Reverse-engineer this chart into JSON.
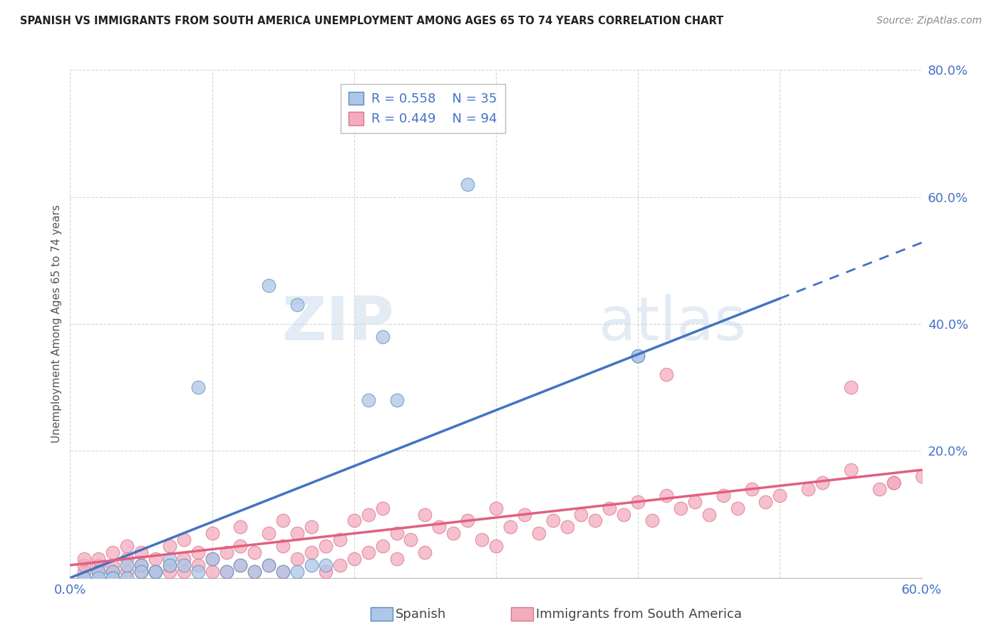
{
  "title": "SPANISH VS IMMIGRANTS FROM SOUTH AMERICA UNEMPLOYMENT AMONG AGES 65 TO 74 YEARS CORRELATION CHART",
  "source": "Source: ZipAtlas.com",
  "ylabel": "Unemployment Among Ages 65 to 74 years",
  "xlim": [
    0.0,
    0.6
  ],
  "ylim": [
    0.0,
    0.8
  ],
  "spanish_R": 0.558,
  "spanish_N": 35,
  "immigrants_R": 0.449,
  "immigrants_N": 94,
  "blue_fill": "#AEC6E8",
  "blue_edge": "#5B8DB8",
  "pink_fill": "#F4ABBE",
  "pink_edge": "#D9748A",
  "blue_line": "#4472C4",
  "pink_line": "#E06080",
  "watermark_color": "#C8D8EC",
  "background_color": "#FFFFFF",
  "grid_color": "#CCCCCC",
  "tick_color": "#4472C4",
  "blue_trendline_solid_end": 0.5,
  "blue_slope": 0.88,
  "blue_intercept": 0.0,
  "pink_slope": 0.25,
  "pink_intercept": 0.02,
  "sp_x": [
    0.28,
    0.14,
    0.16,
    0.22,
    0.09,
    0.21,
    0.23,
    0.4,
    0.4,
    0.02,
    0.03,
    0.04,
    0.05,
    0.06,
    0.07,
    0.01,
    0.02,
    0.03,
    0.04,
    0.05,
    0.06,
    0.07,
    0.08,
    0.09,
    0.1,
    0.11,
    0.12,
    0.13,
    0.14,
    0.15,
    0.16,
    0.17,
    0.18,
    0.01,
    0.03
  ],
  "sp_y": [
    0.62,
    0.46,
    0.43,
    0.38,
    0.3,
    0.28,
    0.28,
    0.35,
    0.35,
    0.01,
    0.01,
    0.02,
    0.02,
    0.01,
    0.03,
    0.0,
    0.0,
    0.0,
    0.0,
    0.01,
    0.01,
    0.02,
    0.02,
    0.01,
    0.03,
    0.01,
    0.02,
    0.01,
    0.02,
    0.01,
    0.01,
    0.02,
    0.02,
    0.0,
    0.0
  ],
  "im_x": [
    0.01,
    0.01,
    0.01,
    0.02,
    0.02,
    0.02,
    0.03,
    0.03,
    0.03,
    0.04,
    0.04,
    0.04,
    0.05,
    0.05,
    0.05,
    0.06,
    0.06,
    0.07,
    0.07,
    0.07,
    0.08,
    0.08,
    0.08,
    0.09,
    0.09,
    0.1,
    0.1,
    0.1,
    0.11,
    0.11,
    0.12,
    0.12,
    0.12,
    0.13,
    0.13,
    0.14,
    0.14,
    0.15,
    0.15,
    0.15,
    0.16,
    0.16,
    0.17,
    0.17,
    0.18,
    0.18,
    0.19,
    0.19,
    0.2,
    0.2,
    0.21,
    0.21,
    0.22,
    0.22,
    0.23,
    0.23,
    0.24,
    0.25,
    0.25,
    0.26,
    0.27,
    0.28,
    0.29,
    0.3,
    0.3,
    0.31,
    0.32,
    0.33,
    0.34,
    0.35,
    0.36,
    0.37,
    0.38,
    0.39,
    0.4,
    0.41,
    0.42,
    0.43,
    0.44,
    0.45,
    0.46,
    0.47,
    0.48,
    0.49,
    0.5,
    0.52,
    0.53,
    0.55,
    0.57,
    0.58,
    0.6,
    0.42,
    0.55,
    0.58
  ],
  "im_y": [
    0.01,
    0.02,
    0.03,
    0.01,
    0.02,
    0.03,
    0.01,
    0.02,
    0.04,
    0.01,
    0.03,
    0.05,
    0.01,
    0.02,
    0.04,
    0.01,
    0.03,
    0.01,
    0.02,
    0.05,
    0.01,
    0.03,
    0.06,
    0.02,
    0.04,
    0.01,
    0.03,
    0.07,
    0.01,
    0.04,
    0.02,
    0.05,
    0.08,
    0.01,
    0.04,
    0.02,
    0.07,
    0.01,
    0.05,
    0.09,
    0.03,
    0.07,
    0.04,
    0.08,
    0.01,
    0.05,
    0.02,
    0.06,
    0.03,
    0.09,
    0.04,
    0.1,
    0.05,
    0.11,
    0.03,
    0.07,
    0.06,
    0.04,
    0.1,
    0.08,
    0.07,
    0.09,
    0.06,
    0.05,
    0.11,
    0.08,
    0.1,
    0.07,
    0.09,
    0.08,
    0.1,
    0.09,
    0.11,
    0.1,
    0.12,
    0.09,
    0.13,
    0.11,
    0.12,
    0.1,
    0.13,
    0.11,
    0.14,
    0.12,
    0.13,
    0.14,
    0.15,
    0.17,
    0.14,
    0.15,
    0.16,
    0.32,
    0.3,
    0.15
  ]
}
